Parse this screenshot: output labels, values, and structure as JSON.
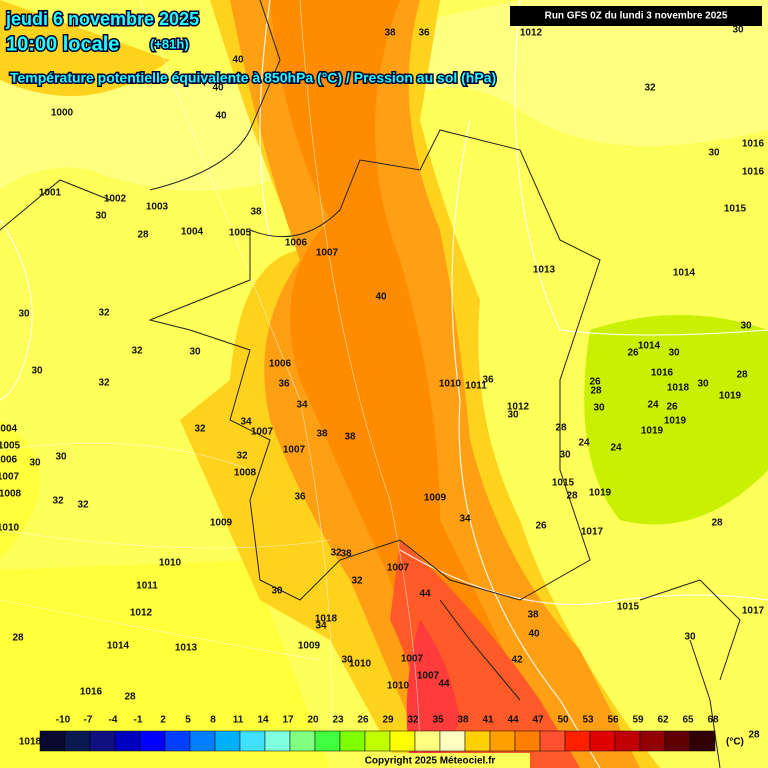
{
  "header": {
    "date": "jeudi 6 novembre 2025",
    "time": "10:00 locale",
    "lead": "(+81h)",
    "subtitle": "Température potentielle équivalente à 850hPa (°C) / Pression au sol (hPa)",
    "run": "Run GFS 0Z du lundi 3 novembre 2025"
  },
  "map": {
    "labels": [
      38,
      36,
      40,
      40,
      40,
      1000,
      1012,
      32,
      30,
      1016,
      1016,
      1001,
      1002,
      1003,
      30,
      28,
      1004,
      1005,
      38,
      1006,
      1007,
      1015,
      1013,
      1014,
      40,
      30,
      32,
      30,
      32,
      30,
      1014,
      26,
      30,
      1006,
      30,
      32,
      36,
      1010,
      1011,
      36,
      1016,
      28,
      1018,
      30,
      26,
      28,
      1019,
      34,
      1012,
      30,
      30,
      24,
      26,
      32,
      34,
      1007,
      38,
      38,
      28,
      1019,
      1019,
      24,
      24,
      1004,
      1005,
      1006,
      30,
      30,
      32,
      1007,
      1007,
      1008,
      30,
      1015,
      28,
      1019,
      1008,
      32,
      32,
      36,
      1009,
      1010,
      1009,
      34,
      26,
      1017,
      28,
      32,
      38,
      1007,
      1010,
      32,
      44,
      1011,
      30,
      1015,
      1017,
      1012,
      1018,
      34,
      38,
      40,
      30,
      28,
      1014,
      1013,
      1009,
      30,
      1010,
      1007,
      42,
      1007,
      44,
      1010,
      1016,
      28,
      28,
      30,
      1018
    ]
  },
  "colorbar": {
    "values": [
      -10,
      -7,
      -4,
      -1,
      2,
      5,
      8,
      11,
      14,
      17,
      20,
      23,
      26,
      29,
      32,
      35,
      38,
      41,
      44,
      47,
      50,
      53,
      56,
      59,
      62,
      65,
      68
    ],
    "colors": [
      "#0a0a30",
      "#0a1a50",
      "#101080",
      "#0000c0",
      "#0000ff",
      "#0040ff",
      "#0080ff",
      "#00b0ff",
      "#40e0ff",
      "#80ffe0",
      "#80ff80",
      "#40ff40",
      "#80ff00",
      "#c0ff00",
      "#ffff00",
      "#ffff80",
      "#ffffc0",
      "#ffd000",
      "#ffa000",
      "#ff8000",
      "#ff5030",
      "#ff2000",
      "#e00000",
      "#c00000",
      "#900000",
      "#600000",
      "#300000"
    ],
    "unit": "(°C)"
  },
  "footer": {
    "copyright": "Copyright 2025 Méteociel.fr"
  }
}
